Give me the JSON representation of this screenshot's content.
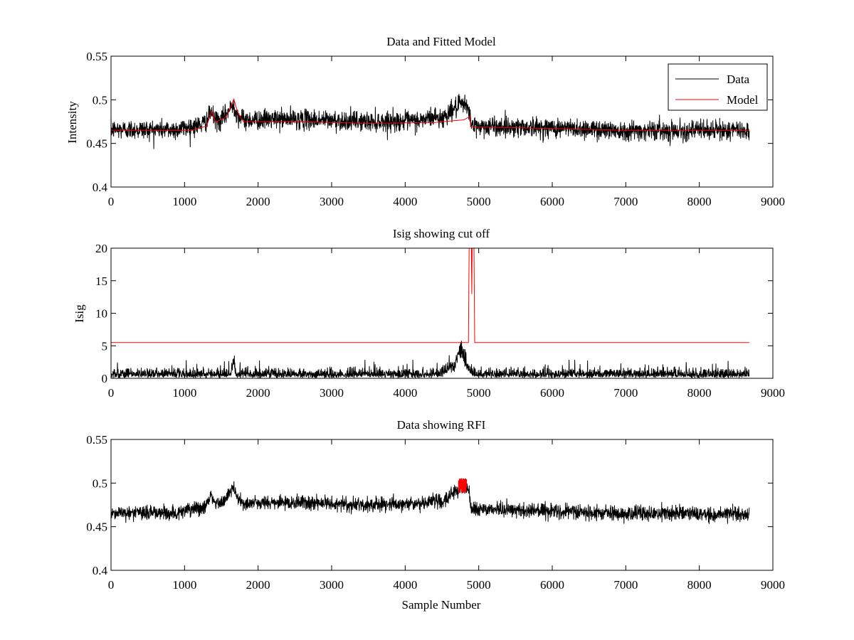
{
  "chart_data": [
    {
      "type": "line",
      "title": "Data and Fitted Model",
      "xlabel": "",
      "ylabel": "Intensity",
      "xlim": [
        0,
        9000
      ],
      "ylim": [
        0.4,
        0.55
      ],
      "xticks": [
        0,
        1000,
        2000,
        3000,
        4000,
        5000,
        6000,
        7000,
        8000,
        9000
      ],
      "yticks": [
        0.4,
        0.45,
        0.5,
        0.55
      ],
      "ytick_labels": [
        "0.4",
        "0.45",
        "0.5",
        "0.55"
      ],
      "legend_position": "top-right",
      "legend": [
        {
          "label": "Data",
          "color": "#000000"
        },
        {
          "label": "Model",
          "color": "#ff0000"
        }
      ],
      "series": [
        {
          "name": "Data",
          "color": "#000000",
          "noise": 0.0055,
          "x_range": [
            0,
            8680
          ],
          "baseline": [
            [
              0,
              0.466
            ],
            [
              900,
              0.466
            ],
            [
              1250,
              0.472
            ],
            [
              1320,
              0.478
            ],
            [
              1360,
              0.487
            ],
            [
              1400,
              0.478
            ],
            [
              1480,
              0.475
            ],
            [
              1600,
              0.487
            ],
            [
              1660,
              0.496
            ],
            [
              1720,
              0.482
            ],
            [
              1800,
              0.477
            ],
            [
              2500,
              0.478
            ],
            [
              3500,
              0.475
            ],
            [
              4200,
              0.476
            ],
            [
              4400,
              0.481
            ],
            [
              4500,
              0.478
            ],
            [
              4600,
              0.486
            ],
            [
              4750,
              0.494
            ],
            [
              4860,
              0.493
            ],
            [
              4900,
              0.47
            ],
            [
              5500,
              0.469
            ],
            [
              6000,
              0.468
            ],
            [
              7000,
              0.465
            ],
            [
              8680,
              0.465
            ]
          ]
        },
        {
          "name": "Model",
          "color": "#ff0000",
          "x_range": [
            0,
            8680
          ],
          "points": [
            [
              0,
              0.465
            ],
            [
              1100,
              0.465
            ],
            [
              1300,
              0.47
            ],
            [
              1370,
              0.487
            ],
            [
              1420,
              0.474
            ],
            [
              1560,
              0.48
            ],
            [
              1640,
              0.494
            ],
            [
              1670,
              0.501
            ],
            [
              1720,
              0.486
            ],
            [
              1800,
              0.475
            ],
            [
              2500,
              0.475
            ],
            [
              3500,
              0.473
            ],
            [
              4400,
              0.474
            ],
            [
              4800,
              0.477
            ],
            [
              4880,
              0.481
            ],
            [
              4890,
              0.469
            ],
            [
              5500,
              0.468
            ],
            [
              6000,
              0.467
            ],
            [
              7000,
              0.465
            ],
            [
              8680,
              0.465
            ]
          ]
        }
      ]
    },
    {
      "type": "line",
      "title": "Isig showing cut off",
      "xlabel": "",
      "ylabel": "Isig",
      "xlim": [
        0,
        9000
      ],
      "ylim": [
        0,
        20
      ],
      "xticks": [
        0,
        1000,
        2000,
        3000,
        4000,
        5000,
        6000,
        7000,
        8000,
        9000
      ],
      "yticks": [
        0,
        5,
        10,
        15,
        20
      ],
      "ytick_labels": [
        "0",
        "5",
        "10",
        "15",
        "20"
      ],
      "series": [
        {
          "name": "Isig",
          "color": "#000000",
          "noise_max": 1.6,
          "x_range": [
            0,
            8680
          ],
          "bumps": [
            [
              1660,
              2.0
            ],
            [
              4620,
              1.5
            ],
            [
              4760,
              4.2
            ]
          ]
        },
        {
          "name": "Cut off",
          "color": "#ff0000",
          "points": [
            [
              0,
              5.5
            ],
            [
              4860,
              5.5
            ],
            [
              4870,
              20
            ],
            [
              4900,
              20
            ],
            [
              4905,
              13
            ],
            [
              4910,
              20
            ],
            [
              4935,
              20
            ],
            [
              4945,
              5.5
            ],
            [
              8680,
              5.5
            ]
          ]
        }
      ]
    },
    {
      "type": "line",
      "title": "Data showing RFI",
      "xlabel": "Sample Number",
      "ylabel": "",
      "xlim": [
        0,
        9000
      ],
      "ylim": [
        0.4,
        0.55
      ],
      "xticks": [
        0,
        1000,
        2000,
        3000,
        4000,
        5000,
        6000,
        7000,
        8000,
        9000
      ],
      "yticks": [
        0.4,
        0.45,
        0.5,
        0.55
      ],
      "ytick_labels": [
        "0.4",
        "0.45",
        "0.5",
        "0.55"
      ],
      "series": [
        {
          "name": "Data",
          "color": "#000000",
          "noise": 0.004,
          "x_range": [
            0,
            8680
          ],
          "baseline": [
            [
              0,
              0.466
            ],
            [
              900,
              0.466
            ],
            [
              1250,
              0.472
            ],
            [
              1320,
              0.478
            ],
            [
              1360,
              0.487
            ],
            [
              1400,
              0.478
            ],
            [
              1480,
              0.475
            ],
            [
              1600,
              0.487
            ],
            [
              1660,
              0.496
            ],
            [
              1720,
              0.482
            ],
            [
              1800,
              0.477
            ],
            [
              2500,
              0.478
            ],
            [
              3500,
              0.475
            ],
            [
              4200,
              0.476
            ],
            [
              4400,
              0.481
            ],
            [
              4500,
              0.478
            ],
            [
              4600,
              0.486
            ],
            [
              4750,
              0.494
            ],
            [
              4860,
              0.493
            ],
            [
              4900,
              0.47
            ],
            [
              5500,
              0.469
            ],
            [
              6000,
              0.468
            ],
            [
              7000,
              0.465
            ],
            [
              8680,
              0.465
            ]
          ]
        },
        {
          "name": "RFI",
          "color": "#ff0000",
          "x_range": [
            4730,
            4830
          ],
          "y_range": [
            0.489,
            0.505
          ]
        }
      ]
    }
  ]
}
